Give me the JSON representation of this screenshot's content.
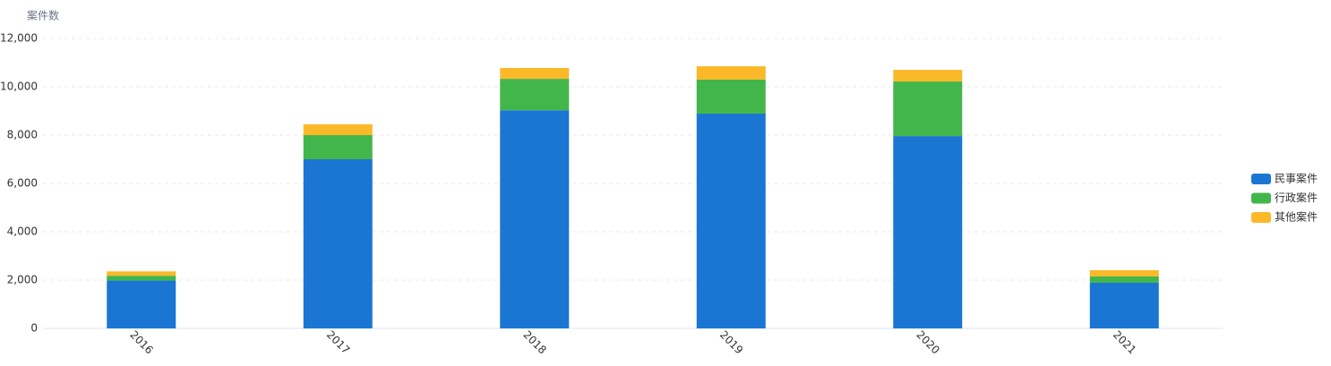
{
  "chart_data": {
    "type": "stacked-bar",
    "y_label": "案件数",
    "categories": [
      "2016",
      "2017",
      "2018",
      "2019",
      "2020",
      "2021"
    ],
    "series": [
      {
        "name": "民事案件",
        "color": "#1a76d2",
        "values": [
          1980,
          7000,
          9030,
          8890,
          7960,
          1890
        ]
      },
      {
        "name": "行政案件",
        "color": "#43b64b",
        "values": [
          200,
          1000,
          1300,
          1410,
          2260,
          260
        ]
      },
      {
        "name": "其他案件",
        "color": "#fbb829",
        "values": [
          180,
          450,
          450,
          550,
          480,
          260
        ]
      }
    ],
    "ylim": [
      0,
      12000
    ],
    "yticks": [
      0,
      {
        "value": 2000,
        "label": "2,000"
      },
      {
        "value": 4000,
        "label": "4,000"
      },
      {
        "value": 6000,
        "label": "6,000"
      },
      {
        "value": 8000,
        "label": "8,000"
      },
      {
        "value": 10000,
        "label": "10,000"
      },
      {
        "value": 12000,
        "label": "12,000"
      }
    ],
    "grid": true,
    "legend": "right"
  }
}
